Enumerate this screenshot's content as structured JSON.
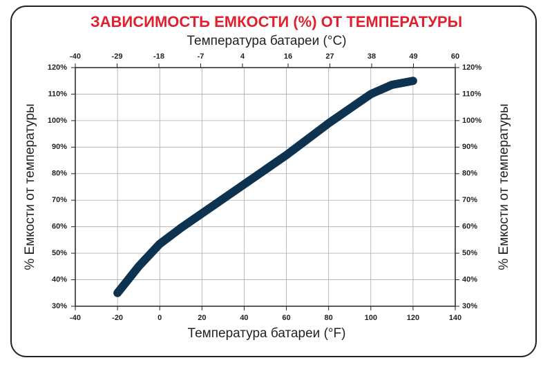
{
  "chart_data": {
    "type": "line",
    "title": "ЗАВИСИМОСТЬ ЕМКОСТИ (%) ОТ ТЕМПЕРАТУРЫ",
    "x_label": "Температура батареи (°F)",
    "x2_label": "Температура батареи (°C)",
    "y_label": "% Емкости от температуры",
    "x": [
      -20,
      -10,
      0,
      10,
      20,
      30,
      40,
      50,
      60,
      70,
      80,
      90,
      100,
      110,
      120
    ],
    "values": [
      35,
      45,
      53.5,
      59.5,
      65,
      70.5,
      76,
      81.5,
      87,
      93,
      99,
      104.5,
      110,
      113.5,
      115
    ],
    "color": "#0d3350",
    "xlim": [
      -40,
      140
    ],
    "xticks": [
      -40,
      -20,
      0,
      20,
      40,
      60,
      80,
      100,
      120,
      140
    ],
    "x2lim": [
      -40,
      60
    ],
    "x2ticks": [
      -40,
      -29,
      -18,
      -7,
      4,
      16,
      27,
      38,
      49,
      60
    ],
    "ylim": [
      30,
      120
    ],
    "yticks": [
      {
        "value": 30,
        "label": "30%"
      },
      {
        "value": 40,
        "label": "40%"
      },
      {
        "value": 50,
        "label": "50%"
      },
      {
        "value": 60,
        "label": "60%"
      },
      {
        "value": 70,
        "label": "70%"
      },
      {
        "value": 80,
        "label": "80%"
      },
      {
        "value": 90,
        "label": "90%"
      },
      {
        "value": 100,
        "label": "100%"
      },
      {
        "value": 110,
        "label": "110%"
      },
      {
        "value": 120,
        "label": "120%"
      }
    ],
    "grid": true
  }
}
